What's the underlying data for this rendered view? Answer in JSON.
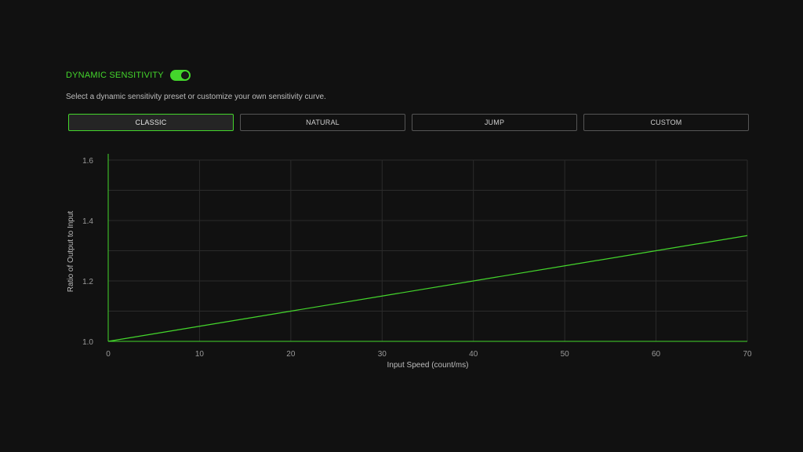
{
  "header": {
    "title": "DYNAMIC SENSITIVITY",
    "toggle_on": true,
    "description": "Select a dynamic sensitivity preset or customize your own sensitivity curve."
  },
  "presets": [
    {
      "label": "CLASSIC",
      "active": true
    },
    {
      "label": "NATURAL",
      "active": false
    },
    {
      "label": "JUMP",
      "active": false
    },
    {
      "label": "CUSTOM",
      "active": false
    }
  ],
  "colors": {
    "accent": "#44d62c",
    "background": "#111111",
    "grid": "#2b2b2b",
    "border": "#555555"
  },
  "chart_data": {
    "type": "line",
    "title": "",
    "xlabel": "Input Speed (count/ms)",
    "ylabel": "Ratio of Output to Input",
    "xlim": [
      0,
      70
    ],
    "ylim": [
      1.0,
      1.6
    ],
    "x_ticks": [
      "0",
      "10",
      "20",
      "30",
      "40",
      "50",
      "60",
      "70"
    ],
    "y_ticks": [
      "1.0",
      "1.2",
      "1.4",
      "1.6"
    ],
    "grid": true,
    "series": [
      {
        "x": [
          0,
          10,
          20,
          30,
          40,
          50,
          60,
          70
        ],
        "y": [
          1.0,
          1.05,
          1.1,
          1.15,
          1.2,
          1.25,
          1.3,
          1.35
        ]
      }
    ]
  }
}
